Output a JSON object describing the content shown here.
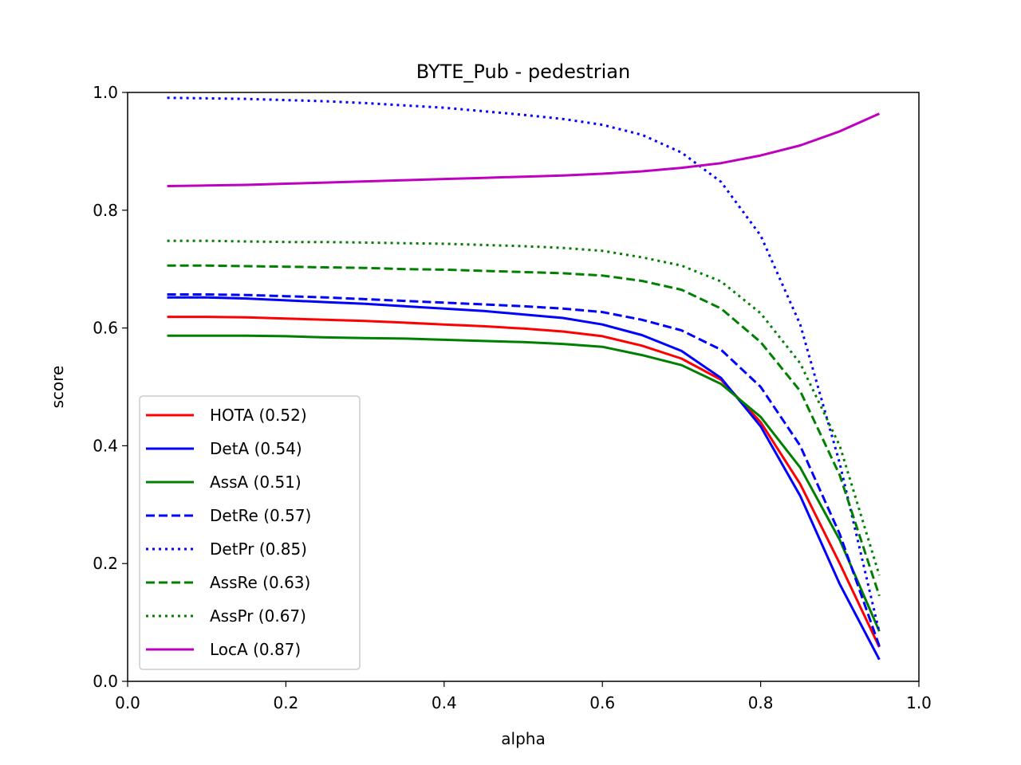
{
  "chart_data": {
    "type": "line",
    "title": "BYTE_Pub - pedestrian",
    "xlabel": "alpha",
    "ylabel": "score",
    "xlim": [
      0.0,
      1.0
    ],
    "ylim": [
      0.0,
      1.0
    ],
    "xticks": [
      "0.0",
      "0.2",
      "0.4",
      "0.6",
      "0.8",
      "1.0"
    ],
    "yticks": [
      "0.0",
      "0.2",
      "0.4",
      "0.6",
      "0.8",
      "1.0"
    ],
    "grid": false,
    "legend_position": "lower-left",
    "x": [
      0.05,
      0.1,
      0.15,
      0.2,
      0.25,
      0.3,
      0.35,
      0.4,
      0.45,
      0.5,
      0.55,
      0.6,
      0.65,
      0.7,
      0.75,
      0.8,
      0.85,
      0.9,
      0.95
    ],
    "series": [
      {
        "name": "HOTA (0.52)",
        "color": "#ff0000",
        "style": "solid",
        "values": [
          0.619,
          0.619,
          0.618,
          0.616,
          0.614,
          0.612,
          0.609,
          0.606,
          0.603,
          0.599,
          0.594,
          0.586,
          0.57,
          0.548,
          0.512,
          0.44,
          0.335,
          0.2,
          0.058
        ]
      },
      {
        "name": "DetA (0.54)",
        "color": "#0000ff",
        "style": "solid",
        "values": [
          0.652,
          0.652,
          0.65,
          0.647,
          0.644,
          0.641,
          0.637,
          0.633,
          0.629,
          0.623,
          0.617,
          0.606,
          0.588,
          0.561,
          0.515,
          0.433,
          0.315,
          0.165,
          0.037
        ]
      },
      {
        "name": "AssA (0.51)",
        "color": "#008000",
        "style": "solid",
        "values": [
          0.587,
          0.587,
          0.587,
          0.586,
          0.584,
          0.583,
          0.582,
          0.58,
          0.578,
          0.576,
          0.573,
          0.568,
          0.554,
          0.537,
          0.505,
          0.449,
          0.363,
          0.24,
          0.085
        ]
      },
      {
        "name": "DetRe (0.57)",
        "color": "#0000ff",
        "style": "dashed",
        "values": [
          0.657,
          0.657,
          0.656,
          0.654,
          0.652,
          0.649,
          0.646,
          0.643,
          0.64,
          0.637,
          0.633,
          0.627,
          0.614,
          0.596,
          0.563,
          0.5,
          0.4,
          0.25,
          0.06
        ]
      },
      {
        "name": "DetPr (0.85)",
        "color": "#0000ff",
        "style": "dotted",
        "values": [
          0.991,
          0.99,
          0.989,
          0.987,
          0.985,
          0.982,
          0.978,
          0.974,
          0.968,
          0.962,
          0.955,
          0.945,
          0.928,
          0.898,
          0.848,
          0.757,
          0.606,
          0.37,
          0.083
        ]
      },
      {
        "name": "AssRe (0.63)",
        "color": "#008000",
        "style": "dashed",
        "values": [
          0.706,
          0.706,
          0.705,
          0.704,
          0.703,
          0.702,
          0.7,
          0.699,
          0.697,
          0.695,
          0.693,
          0.689,
          0.68,
          0.665,
          0.633,
          0.576,
          0.493,
          0.35,
          0.145
        ]
      },
      {
        "name": "AssPr (0.67)",
        "color": "#008000",
        "style": "dotted",
        "values": [
          0.748,
          0.748,
          0.747,
          0.746,
          0.746,
          0.745,
          0.744,
          0.743,
          0.741,
          0.739,
          0.736,
          0.731,
          0.72,
          0.706,
          0.679,
          0.625,
          0.54,
          0.4,
          0.18
        ]
      },
      {
        "name": "LocA (0.87)",
        "color": "#bf00bf",
        "style": "solid",
        "values": [
          0.841,
          0.842,
          0.843,
          0.845,
          0.847,
          0.849,
          0.851,
          0.853,
          0.855,
          0.857,
          0.859,
          0.862,
          0.866,
          0.872,
          0.88,
          0.893,
          0.91,
          0.934,
          0.964
        ]
      }
    ]
  }
}
